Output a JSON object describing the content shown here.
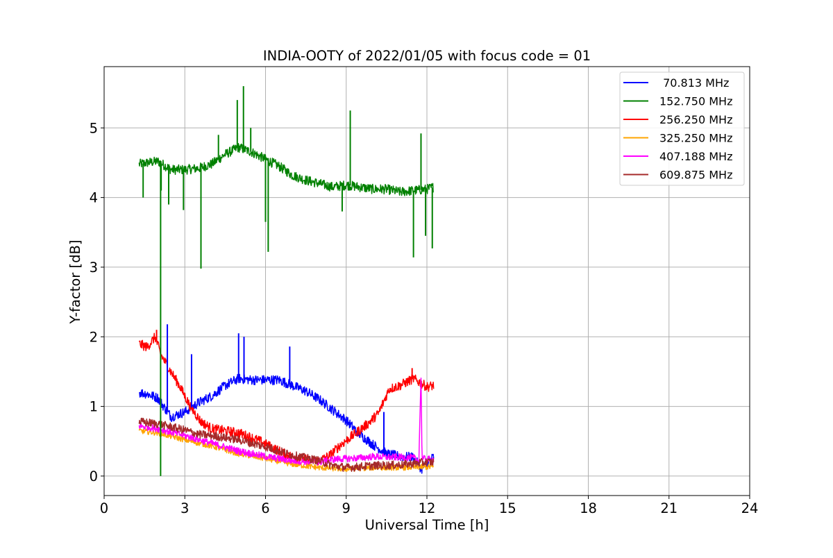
{
  "chart_data": {
    "type": "line",
    "title": "INDIA-OOTY of 2022/01/05 with focus code = 01",
    "xlabel": "Universal Time [h]",
    "ylabel": "Y-factor [dB]",
    "xlim": [
      0,
      24
    ],
    "ylim": [
      -0.28,
      5.88
    ],
    "xticks": [
      0,
      3,
      6,
      9,
      12,
      15,
      18,
      21,
      24
    ],
    "xtick_labels": [
      "0",
      "3",
      "6",
      "9",
      "12",
      "15",
      "18",
      "21",
      "24"
    ],
    "yticks": [
      0,
      1,
      2,
      3,
      4,
      5
    ],
    "ytick_labels": [
      "0",
      "1",
      "2",
      "3",
      "4",
      "5"
    ],
    "grid": true,
    "legend_position": "top-right",
    "series": [
      {
        "name": " 70.813 MHz",
        "color": "#0000ff",
        "x": [
          1.3,
          1.6,
          2.0,
          2.3,
          2.5,
          3.0,
          3.5,
          4.0,
          4.5,
          5.0,
          5.5,
          6.0,
          6.5,
          7.0,
          7.5,
          8.0,
          8.5,
          9.0,
          9.5,
          10.0,
          10.5,
          11.0,
          11.5,
          11.8,
          12.0,
          12.25
        ],
        "y": [
          1.2,
          1.18,
          1.12,
          0.95,
          0.85,
          0.92,
          1.05,
          1.15,
          1.3,
          1.4,
          1.38,
          1.38,
          1.38,
          1.3,
          1.22,
          1.1,
          0.95,
          0.8,
          0.6,
          0.45,
          0.32,
          0.28,
          0.27,
          0.1,
          0.18,
          0.28
        ]
      },
      {
        "name": "152.750 MHz",
        "color": "#008000",
        "x": [
          1.3,
          1.6,
          2.0,
          2.5,
          3.0,
          3.5,
          4.0,
          4.5,
          5.0,
          5.5,
          6.0,
          6.5,
          7.0,
          7.5,
          8.0,
          8.5,
          9.0,
          9.5,
          10.0,
          10.5,
          11.0,
          11.5,
          12.0,
          12.25
        ],
        "y": [
          4.48,
          4.5,
          4.52,
          4.4,
          4.4,
          4.42,
          4.48,
          4.62,
          4.72,
          4.65,
          4.55,
          4.45,
          4.32,
          4.25,
          4.2,
          4.15,
          4.18,
          4.15,
          4.12,
          4.12,
          4.08,
          4.1,
          4.12,
          4.15
        ]
      },
      {
        "name": "256.250 MHz",
        "color": "#ff0000",
        "x": [
          1.3,
          1.6,
          1.9,
          2.1,
          2.4,
          2.8,
          3.2,
          3.6,
          4.0,
          4.5,
          5.0,
          5.5,
          5.8,
          6.3,
          6.8,
          7.3,
          7.8,
          8.0,
          8.4,
          8.8,
          9.3,
          9.8,
          10.2,
          10.6,
          11.0,
          11.5,
          12.0,
          12.25
        ],
        "y": [
          1.9,
          1.85,
          2.0,
          1.75,
          1.55,
          1.3,
          1.0,
          0.78,
          0.68,
          0.65,
          0.62,
          0.55,
          0.5,
          0.4,
          0.3,
          0.25,
          0.22,
          0.22,
          0.3,
          0.45,
          0.6,
          0.75,
          0.9,
          1.25,
          1.3,
          1.4,
          1.28,
          1.3
        ]
      },
      {
        "name": "325.250 MHz",
        "color": "#ffa500",
        "x": [
          1.3,
          2.0,
          3.0,
          4.0,
          5.0,
          6.0,
          7.0,
          8.0,
          9.0,
          10.0,
          11.0,
          12.0,
          12.25
        ],
        "y": [
          0.65,
          0.62,
          0.52,
          0.43,
          0.32,
          0.25,
          0.17,
          0.12,
          0.1,
          0.12,
          0.12,
          0.13,
          0.13
        ]
      },
      {
        "name": "407.188 MHz",
        "color": "#ff00ff",
        "x": [
          1.3,
          2.0,
          3.0,
          4.0,
          5.0,
          6.0,
          7.0,
          8.0,
          8.5,
          9.0,
          9.5,
          10.0,
          10.5,
          11.0,
          11.5,
          11.7,
          11.78,
          11.82,
          12.0,
          12.25
        ],
        "y": [
          0.72,
          0.68,
          0.58,
          0.47,
          0.36,
          0.28,
          0.22,
          0.2,
          0.24,
          0.25,
          0.26,
          0.28,
          0.27,
          0.27,
          0.26,
          0.22,
          1.45,
          0.25,
          0.24,
          0.24
        ]
      },
      {
        "name": "609.875 MHz",
        "color": "#a52a2a",
        "x": [
          1.3,
          2.0,
          3.0,
          3.5,
          4.0,
          5.0,
          6.0,
          7.0,
          8.0,
          8.5,
          9.0,
          10.0,
          11.0,
          11.5,
          12.0,
          12.25
        ],
        "y": [
          0.78,
          0.75,
          0.66,
          0.6,
          0.58,
          0.52,
          0.42,
          0.3,
          0.22,
          0.15,
          0.12,
          0.15,
          0.16,
          0.18,
          0.2,
          0.2
        ]
      }
    ],
    "spikes": [
      {
        "series": 1,
        "x": 2.1,
        "y": 0.0
      },
      {
        "series": 1,
        "x": 2.12,
        "y": 4.1
      },
      {
        "series": 1,
        "x": 1.45,
        "y": 4.0
      },
      {
        "series": 1,
        "x": 2.4,
        "y": 3.9
      },
      {
        "series": 1,
        "x": 2.95,
        "y": 3.82
      },
      {
        "series": 1,
        "x": 3.6,
        "y": 2.98
      },
      {
        "series": 1,
        "x": 4.25,
        "y": 4.9
      },
      {
        "series": 1,
        "x": 4.95,
        "y": 5.4
      },
      {
        "series": 1,
        "x": 5.18,
        "y": 5.6
      },
      {
        "series": 1,
        "x": 5.45,
        "y": 5.0
      },
      {
        "series": 1,
        "x": 6.0,
        "y": 3.65
      },
      {
        "series": 1,
        "x": 6.1,
        "y": 3.22
      },
      {
        "series": 1,
        "x": 8.85,
        "y": 3.8
      },
      {
        "series": 1,
        "x": 9.15,
        "y": 5.25
      },
      {
        "series": 1,
        "x": 11.5,
        "y": 3.14
      },
      {
        "series": 1,
        "x": 11.78,
        "y": 4.92
      },
      {
        "series": 1,
        "x": 11.95,
        "y": 3.45
      },
      {
        "series": 1,
        "x": 12.2,
        "y": 3.27
      },
      {
        "series": 0,
        "x": 2.35,
        "y": 2.18
      },
      {
        "series": 0,
        "x": 3.25,
        "y": 1.75
      },
      {
        "series": 0,
        "x": 5.0,
        "y": 2.05
      },
      {
        "series": 0,
        "x": 5.2,
        "y": 2.0
      },
      {
        "series": 0,
        "x": 6.9,
        "y": 1.86
      },
      {
        "series": 0,
        "x": 10.4,
        "y": 0.92
      },
      {
        "series": 2,
        "x": 1.95,
        "y": 2.1
      },
      {
        "series": 2,
        "x": 11.45,
        "y": 1.55
      }
    ]
  }
}
